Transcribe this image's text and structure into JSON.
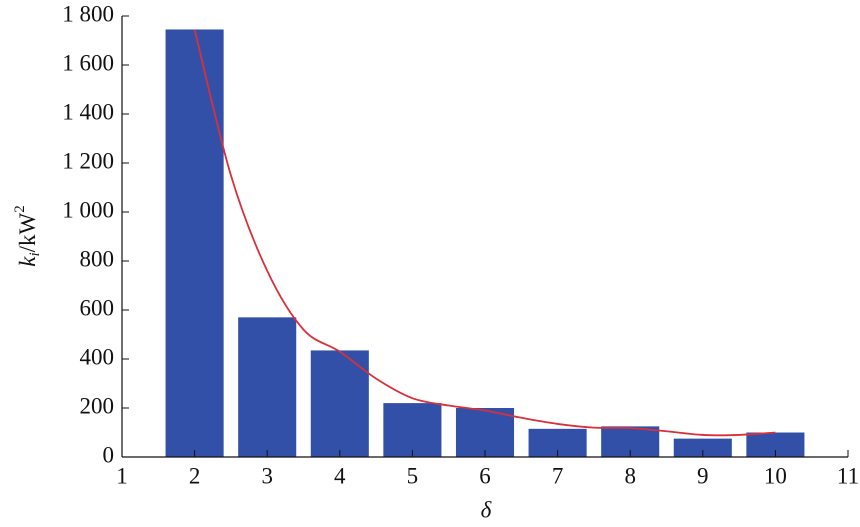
{
  "chart_data": {
    "type": "bar",
    "xlabel": "δ",
    "ylabel": {
      "base": "k",
      "sub": "i",
      "unit": "/kW",
      "sup": "2"
    },
    "xlim": [
      1,
      11
    ],
    "xticks": [
      1,
      2,
      3,
      4,
      5,
      6,
      7,
      8,
      9,
      10,
      11
    ],
    "ylim": [
      0,
      1800
    ],
    "yticks": [
      0,
      200,
      400,
      600,
      800,
      {
        "value": 1000,
        "label": "1 000"
      },
      {
        "value": 1200,
        "label": "1 200"
      },
      {
        "value": 1400,
        "label": "1 400"
      },
      {
        "value": 1600,
        "label": "1 600"
      },
      {
        "value": 1800,
        "label": "1 800"
      }
    ],
    "series": [
      {
        "type": "bar",
        "color": "#3350a8",
        "x": [
          2,
          3,
          4,
          5,
          6,
          7,
          8,
          9,
          10
        ],
        "values": [
          1745,
          570,
          435,
          220,
          200,
          115,
          125,
          75,
          100
        ]
      },
      {
        "type": "line",
        "color": "#d9303a",
        "x": [
          2,
          2.5,
          3,
          3.5,
          4,
          4.5,
          5,
          5.5,
          6,
          6.5,
          7,
          7.5,
          8,
          8.5,
          9,
          9.5,
          10
        ],
        "values": [
          1745,
          1150,
          760,
          520,
          430,
          320,
          240,
          210,
          190,
          160,
          135,
          120,
          118,
          105,
          90,
          90,
          100
        ]
      }
    ]
  }
}
